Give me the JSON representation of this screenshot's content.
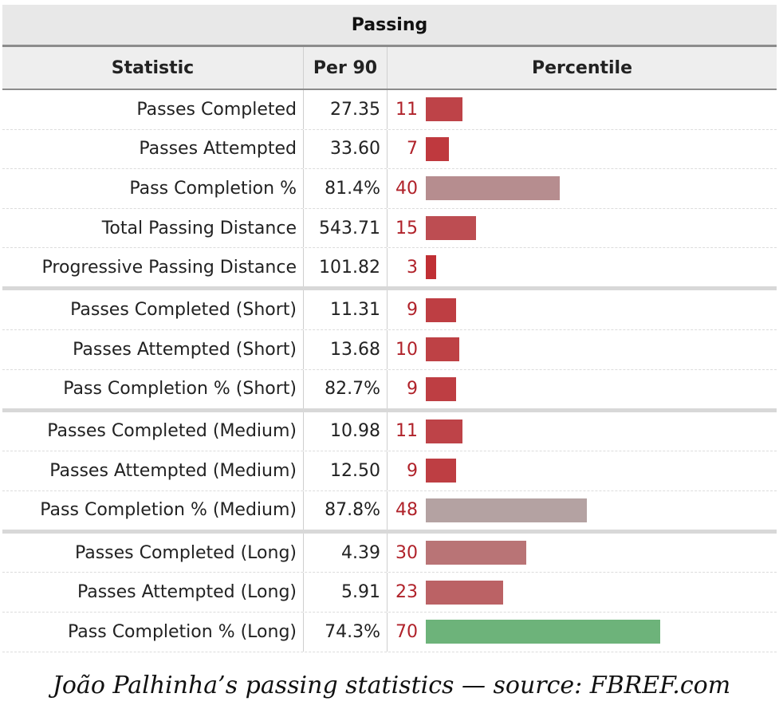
{
  "table": {
    "title": "Passing",
    "headers": {
      "statistic": "Statistic",
      "per90": "Per 90",
      "percentile": "Percentile"
    }
  },
  "chart_data": {
    "type": "table",
    "title": "Passing",
    "columns": [
      "Statistic",
      "Per 90",
      "Percentile"
    ],
    "rows": [
      {
        "statistic": "Passes Completed",
        "per90": "27.35",
        "percentile": 11,
        "group": 1
      },
      {
        "statistic": "Passes Attempted",
        "per90": "33.60",
        "percentile": 7,
        "group": 1
      },
      {
        "statistic": "Pass Completion %",
        "per90": "81.4%",
        "percentile": 40,
        "group": 1
      },
      {
        "statistic": "Total Passing Distance",
        "per90": "543.71",
        "percentile": 15,
        "group": 1
      },
      {
        "statistic": "Progressive Passing Distance",
        "per90": "101.82",
        "percentile": 3,
        "group": 1
      },
      {
        "statistic": "Passes Completed (Short)",
        "per90": "11.31",
        "percentile": 9,
        "group": 2
      },
      {
        "statistic": "Passes Attempted (Short)",
        "per90": "13.68",
        "percentile": 10,
        "group": 2
      },
      {
        "statistic": "Pass Completion % (Short)",
        "per90": "82.7%",
        "percentile": 9,
        "group": 2
      },
      {
        "statistic": "Passes Completed (Medium)",
        "per90": "10.98",
        "percentile": 11,
        "group": 3
      },
      {
        "statistic": "Passes Attempted (Medium)",
        "per90": "12.50",
        "percentile": 9,
        "group": 3
      },
      {
        "statistic": "Pass Completion % (Medium)",
        "per90": "87.8%",
        "percentile": 48,
        "group": 3
      },
      {
        "statistic": "Passes Completed (Long)",
        "per90": "4.39",
        "percentile": 30,
        "group": 4
      },
      {
        "statistic": "Passes Attempted (Long)",
        "per90": "5.91",
        "percentile": 23,
        "group": 4
      },
      {
        "statistic": "Pass Completion % (Long)",
        "per90": "74.3%",
        "percentile": 70,
        "group": 4
      }
    ],
    "percentile_range": [
      0,
      100
    ],
    "colors": {
      "low": "#c1272d",
      "mid": "#b3a7a7",
      "high": "#6db37a",
      "label": "#b0222a"
    }
  },
  "caption": "João Palhinha’s passing statistics — source: FBREF.com"
}
